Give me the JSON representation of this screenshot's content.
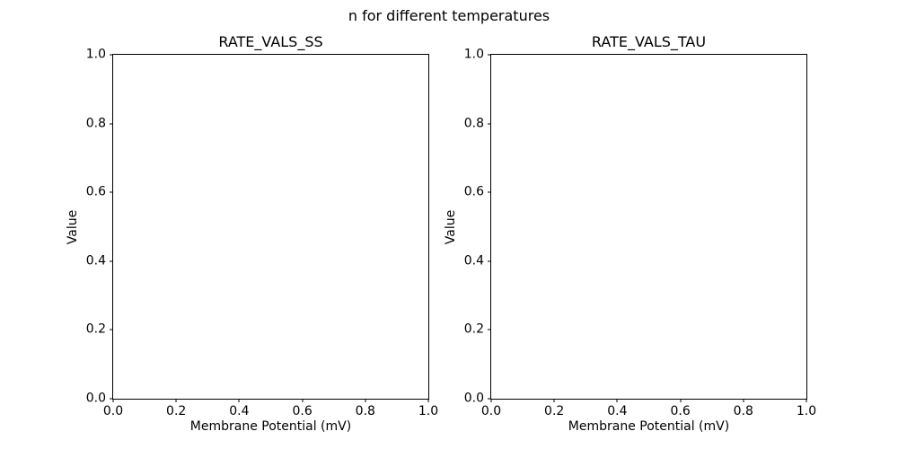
{
  "figure": {
    "suptitle": "n for different temperatures",
    "background_color": "#ffffff",
    "text_color": "#000000",
    "spine_color": "#000000"
  },
  "chart_data": [
    {
      "type": "line",
      "title": "RATE_VALS_SS",
      "xlabel": "Membrane Potential (mV)",
      "ylabel": "Value",
      "xlim": [
        0.0,
        1.0
      ],
      "ylim": [
        0.0,
        1.0
      ],
      "xticks": [
        "0.0",
        "0.2",
        "0.4",
        "0.6",
        "0.8",
        "1.0"
      ],
      "yticks": [
        "0.0",
        "0.2",
        "0.4",
        "0.6",
        "0.8",
        "1.0"
      ],
      "grid": false,
      "legend": null,
      "series": []
    },
    {
      "type": "line",
      "title": "RATE_VALS_TAU",
      "xlabel": "Membrane Potential (mV)",
      "ylabel": "Value",
      "xlim": [
        0.0,
        1.0
      ],
      "ylim": [
        0.0,
        1.0
      ],
      "xticks": [
        "0.0",
        "0.2",
        "0.4",
        "0.6",
        "0.8",
        "1.0"
      ],
      "yticks": [
        "0.0",
        "0.2",
        "0.4",
        "0.6",
        "0.8",
        "1.0"
      ],
      "grid": false,
      "legend": null,
      "series": []
    }
  ]
}
